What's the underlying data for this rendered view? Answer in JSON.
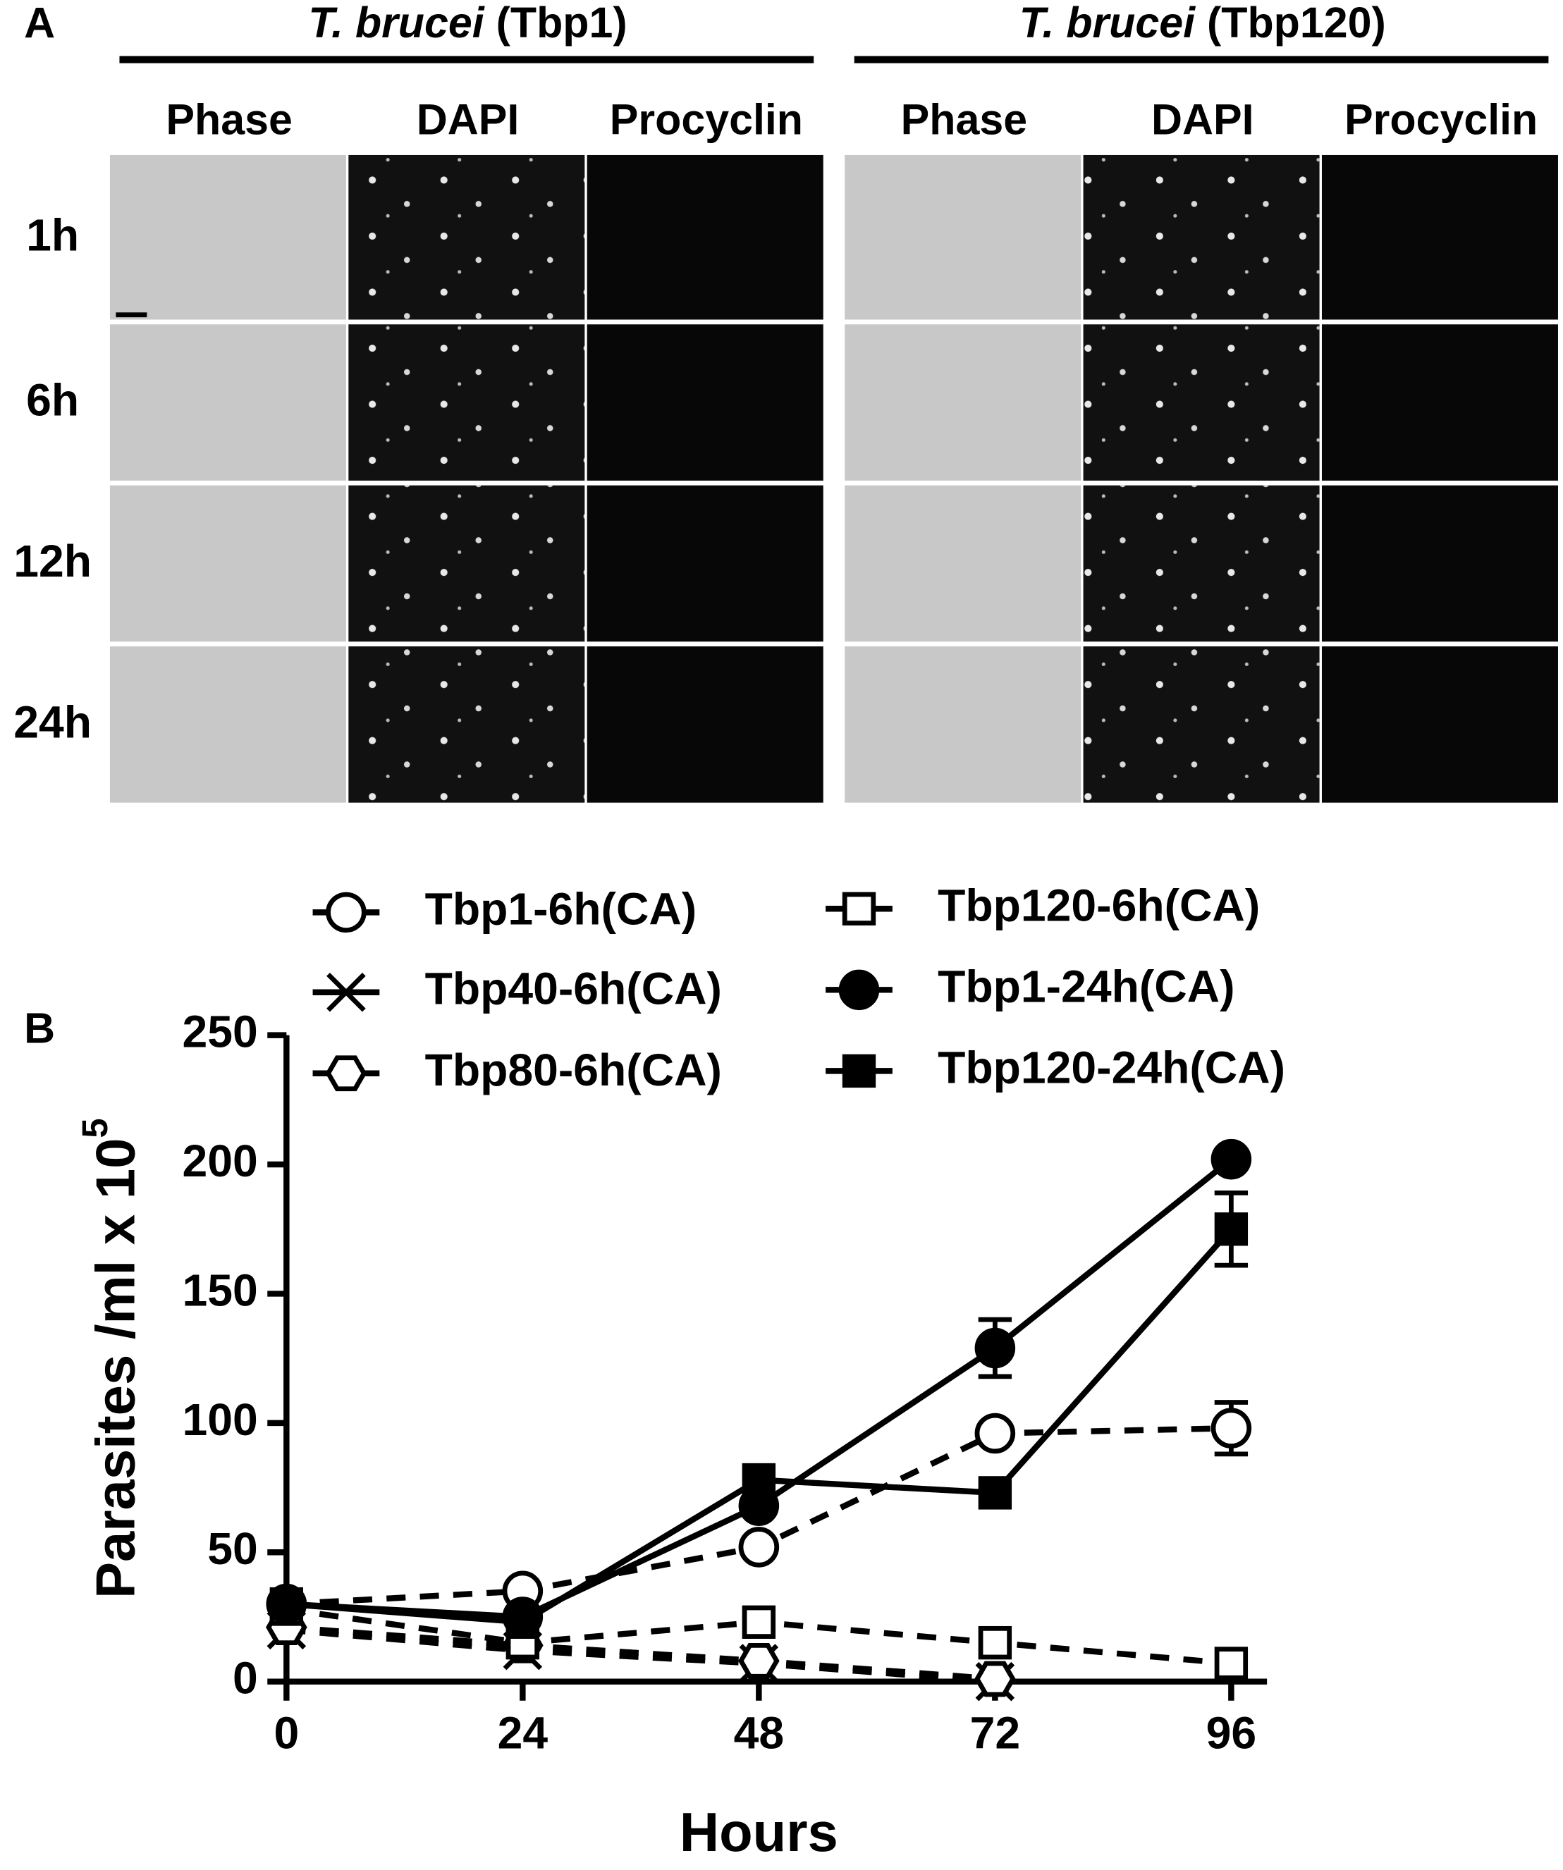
{
  "panel_a": {
    "label": "A",
    "groups": [
      {
        "species": "T. brucei",
        "strain": "(Tbp1)",
        "columns": [
          "Phase",
          "DAPI",
          "Procyclin"
        ]
      },
      {
        "species": "T. brucei",
        "strain": "(Tbp120)",
        "columns": [
          "Phase",
          "DAPI",
          "Procyclin"
        ]
      }
    ],
    "rows": [
      "1h",
      "6h",
      "12h",
      "24h"
    ]
  },
  "chart_data": {
    "type": "line",
    "panel_label": "B",
    "x_label": "Hours",
    "y_label": "Parasites /ml x 10",
    "y_label_superscript": "5",
    "x": [
      0,
      24,
      48,
      72,
      96
    ],
    "xlim": [
      0,
      96
    ],
    "xticks": [
      0,
      24,
      48,
      72,
      96
    ],
    "ylim": [
      0,
      250
    ],
    "yticks": [
      0,
      50,
      100,
      150,
      200,
      250
    ],
    "series": [
      {
        "name": "Tbp1-6h(CA)",
        "color": "#000000",
        "marker": "open-circle",
        "dashed": true,
        "values": [
          30,
          35,
          52,
          96,
          98
        ],
        "errors": [
          null,
          null,
          null,
          null,
          10
        ]
      },
      {
        "name": "Tbp40-6h(CA)",
        "color": "#000000",
        "marker": "x",
        "dashed": true,
        "values": [
          20,
          12,
          7,
          0,
          null
        ],
        "errors": [
          null,
          null,
          null,
          null,
          null
        ]
      },
      {
        "name": "Tbp80-6h(CA)",
        "color": "#000000",
        "marker": "open-hexagon",
        "dashed": true,
        "values": [
          21,
          14,
          8,
          1,
          null
        ],
        "errors": [
          null,
          null,
          null,
          null,
          null
        ]
      },
      {
        "name": "Tbp120-6h(CA)",
        "color": "#000000",
        "marker": "open-square",
        "dashed": true,
        "values": [
          28,
          15,
          23,
          15,
          7
        ],
        "errors": [
          null,
          null,
          null,
          null,
          null
        ]
      },
      {
        "name": "Tbp1-24h(CA)",
        "color": "#000000",
        "marker": "circle",
        "dashed": false,
        "values": [
          30,
          25,
          68,
          129,
          202
        ],
        "errors": [
          null,
          null,
          null,
          11,
          null
        ]
      },
      {
        "name": "Tbp120-24h(CA)",
        "color": "#000000",
        "marker": "square",
        "dashed": false,
        "values": [
          30,
          23,
          78,
          73,
          175
        ],
        "errors": [
          null,
          null,
          null,
          null,
          14
        ]
      }
    ]
  }
}
